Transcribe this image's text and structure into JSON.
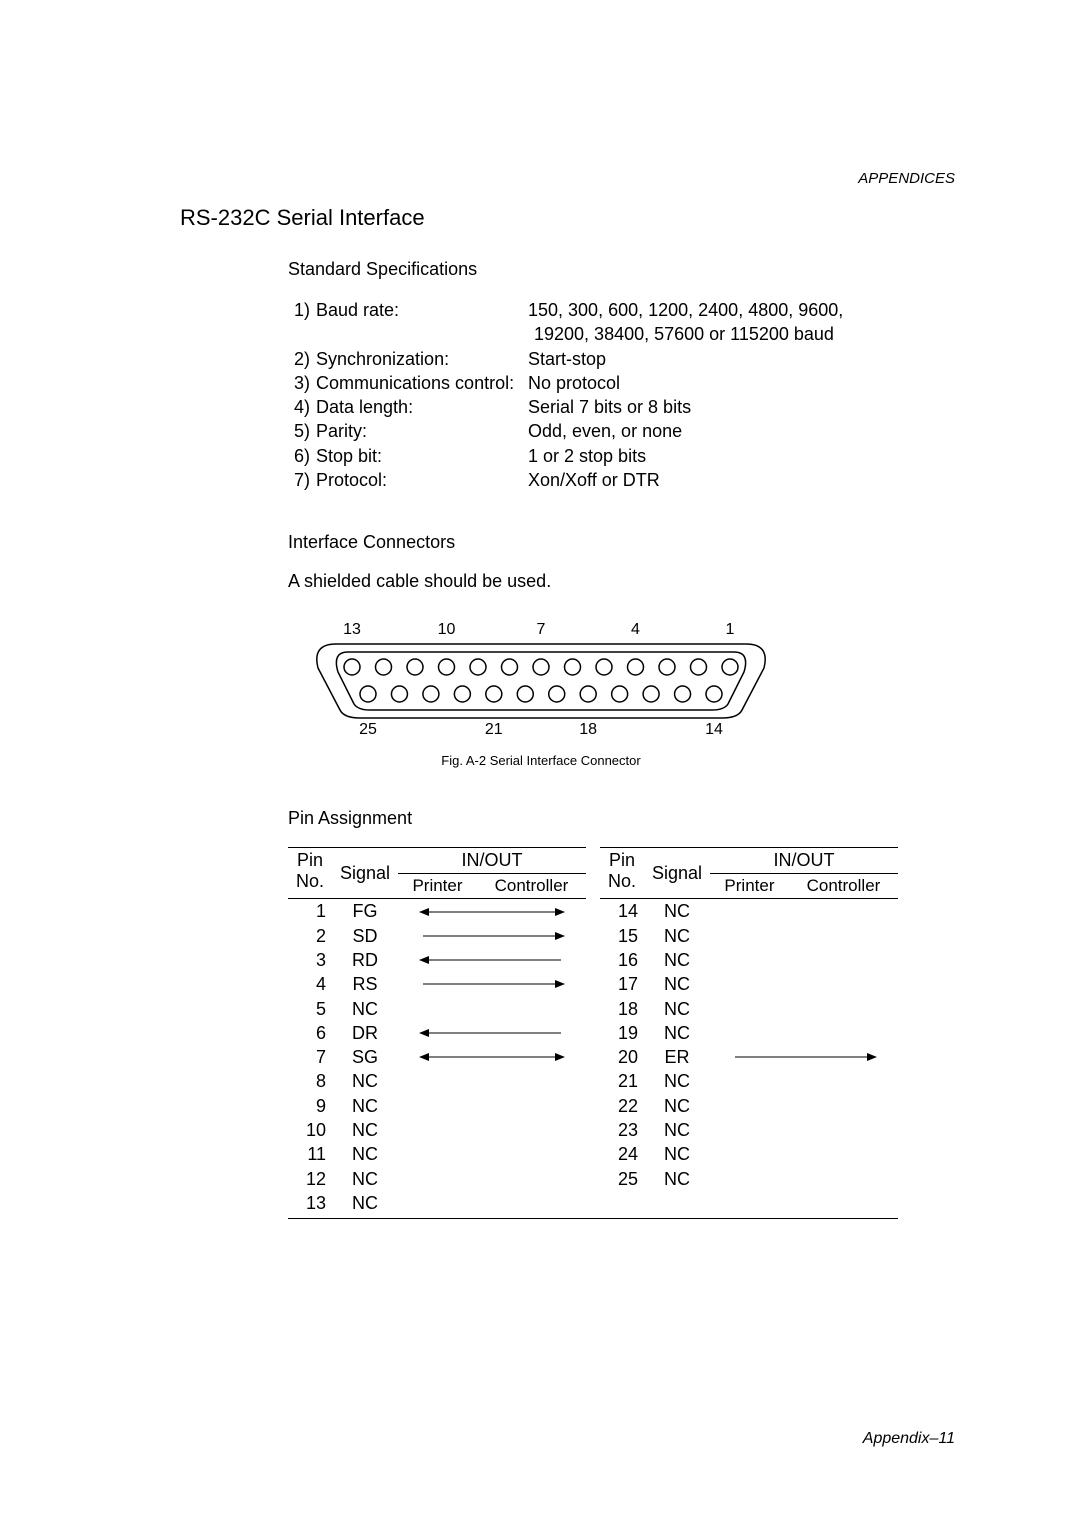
{
  "header": "APPENDICES",
  "title": "RS-232C Serial Interface",
  "specs_heading": "Standard Specifications",
  "specs": [
    {
      "n": "1)",
      "label": "Baud rate:",
      "value": "150, 300, 600, 1200, 2400, 4800, 9600,"
    },
    {
      "n": "",
      "label": "",
      "value": "19200, 38400, 57600 or 115200 baud",
      "indent": true
    },
    {
      "n": "2)",
      "label": "Synchronization:",
      "value": "Start-stop"
    },
    {
      "n": "3)",
      "label": "Communications control:",
      "value": "No protocol"
    },
    {
      "n": "4)",
      "label": "Data length:",
      "value": "Serial 7 bits or 8 bits"
    },
    {
      "n": "5)",
      "label": "Parity:",
      "value": "Odd, even, or none"
    },
    {
      "n": "6)",
      "label": "Stop bit:",
      "value": "1 or 2 stop bits"
    },
    {
      "n": "7)",
      "label": "Protocol:",
      "value": "Xon/Xoff or DTR"
    }
  ],
  "connectors_heading": "Interface Connectors",
  "cable_note": "A shielded cable should be used.",
  "connector": {
    "top_labels": [
      "13",
      "10",
      "7",
      "4",
      "1"
    ],
    "bottom_labels": [
      "25",
      "21",
      "18",
      "14"
    ],
    "top_pins": 13,
    "bottom_pins": 12,
    "circle_stroke": "#000000",
    "circle_fill": "#ffffff",
    "body_stroke": "#000000",
    "body_fill": "#ffffff",
    "label_fontsize": 16
  },
  "fig_caption": "Fig. A-2  Serial Interface Connector",
  "pin_heading": "Pin Assignment",
  "table": {
    "headers": {
      "pin": "Pin",
      "no": "No.",
      "signal": "Signal",
      "inout": "IN/OUT",
      "printer": "Printer",
      "controller": "Controller"
    },
    "left": [
      {
        "pin": "1",
        "sig": "FG",
        "dir": "both"
      },
      {
        "pin": "2",
        "sig": "SD",
        "dir": "right"
      },
      {
        "pin": "3",
        "sig": "RD",
        "dir": "left"
      },
      {
        "pin": "4",
        "sig": "RS",
        "dir": "right"
      },
      {
        "pin": "5",
        "sig": "NC",
        "dir": ""
      },
      {
        "pin": "6",
        "sig": "DR",
        "dir": "left"
      },
      {
        "pin": "7",
        "sig": "SG",
        "dir": "both"
      },
      {
        "pin": "8",
        "sig": "NC",
        "dir": ""
      },
      {
        "pin": "9",
        "sig": "NC",
        "dir": ""
      },
      {
        "pin": "10",
        "sig": "NC",
        "dir": ""
      },
      {
        "pin": "11",
        "sig": "NC",
        "dir": ""
      },
      {
        "pin": "12",
        "sig": "NC",
        "dir": ""
      },
      {
        "pin": "13",
        "sig": "NC",
        "dir": ""
      }
    ],
    "right": [
      {
        "pin": "14",
        "sig": "NC",
        "dir": ""
      },
      {
        "pin": "15",
        "sig": "NC",
        "dir": ""
      },
      {
        "pin": "16",
        "sig": "NC",
        "dir": ""
      },
      {
        "pin": "17",
        "sig": "NC",
        "dir": ""
      },
      {
        "pin": "18",
        "sig": "NC",
        "dir": ""
      },
      {
        "pin": "19",
        "sig": "NC",
        "dir": ""
      },
      {
        "pin": "20",
        "sig": "ER",
        "dir": "right"
      },
      {
        "pin": "21",
        "sig": "NC",
        "dir": ""
      },
      {
        "pin": "22",
        "sig": "NC",
        "dir": ""
      },
      {
        "pin": "23",
        "sig": "NC",
        "dir": ""
      },
      {
        "pin": "24",
        "sig": "NC",
        "dir": ""
      },
      {
        "pin": "25",
        "sig": "NC",
        "dir": ""
      }
    ]
  },
  "footer": "Appendix–11"
}
